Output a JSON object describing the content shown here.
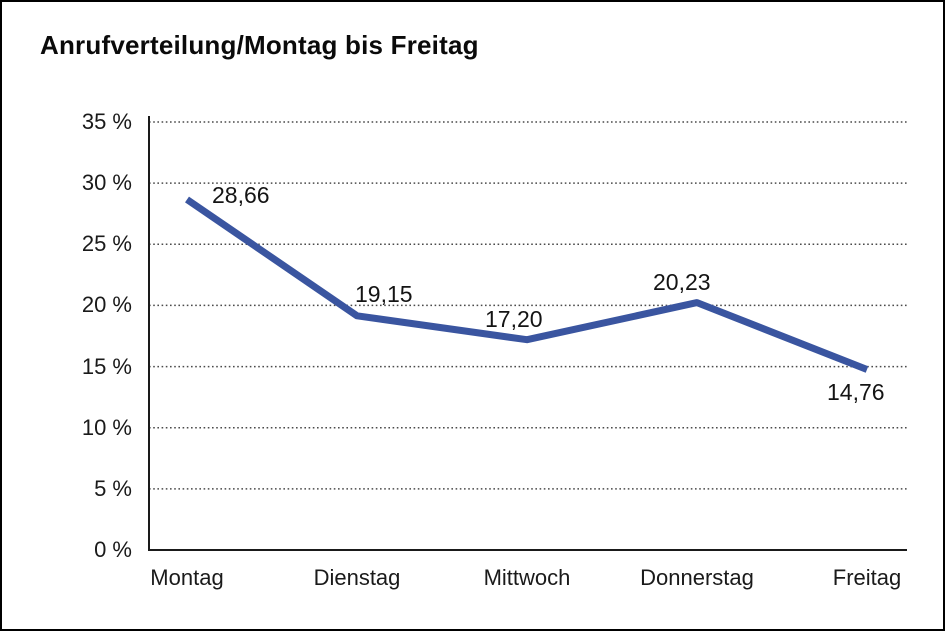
{
  "title": "Anrufverteilung/Montag bis Freitag",
  "chart_data": {
    "type": "line",
    "title": "Anrufverteilung/Montag bis Freitag",
    "categories": [
      "Montag",
      "Dienstag",
      "Mittwoch",
      "Donnerstag",
      "Freitag"
    ],
    "values": [
      28.66,
      19.15,
      17.2,
      20.23,
      14.76
    ],
    "data_labels": [
      "28,66",
      "19,15",
      "17,20",
      "20,23",
      "14,76"
    ],
    "unit": "%",
    "xlabel": "",
    "ylabel": "",
    "ylim": [
      0,
      35
    ],
    "ytick_step": 5,
    "ytick_labels": [
      "0 %",
      "5 %",
      "10 %",
      "15 %",
      "20 %",
      "25 %",
      "30 %",
      "35 %"
    ],
    "grid": "horizontal-dotted",
    "legend": "none",
    "line_color": "#3A55A0",
    "axis_color": "#1a1a1a",
    "gridline_color": "#4a4a4a"
  }
}
